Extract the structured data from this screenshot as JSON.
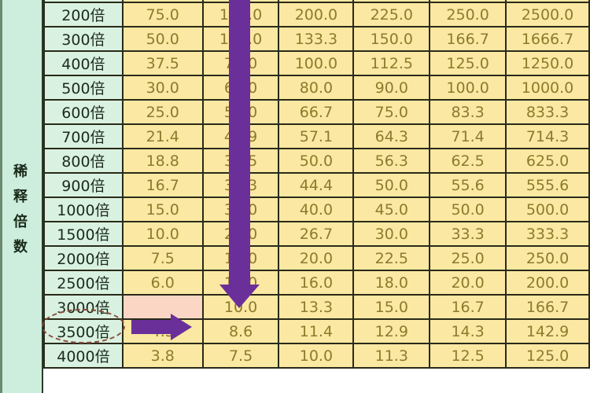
{
  "side_label": [
    "稀",
    "释",
    "倍",
    "数"
  ],
  "highlight_row": "3000倍",
  "colors": {
    "arrow": "#6b2f9a",
    "label_bg": "#d9f1e0",
    "value_bg": "#fbe8a2",
    "circle": "#8a4a3a"
  },
  "rows": [
    {
      "label": "",
      "values": [
        "",
        "",
        "",
        "",
        "",
        ""
      ]
    },
    {
      "label": "200倍",
      "values": [
        "75.0",
        "150.0",
        "200.0",
        "225.0",
        "250.0",
        "2500.0"
      ]
    },
    {
      "label": "300倍",
      "values": [
        "50.0",
        "100.0",
        "133.3",
        "150.0",
        "166.7",
        "1666.7"
      ]
    },
    {
      "label": "400倍",
      "values": [
        "37.5",
        "75.0",
        "100.0",
        "112.5",
        "125.0",
        "1250.0"
      ]
    },
    {
      "label": "500倍",
      "values": [
        "30.0",
        "60.0",
        "80.0",
        "90.0",
        "100.0",
        "1000.0"
      ]
    },
    {
      "label": "600倍",
      "values": [
        "25.0",
        "50.0",
        "66.7",
        "75.0",
        "83.3",
        "833.3"
      ]
    },
    {
      "label": "700倍",
      "values": [
        "21.4",
        "42.9",
        "57.1",
        "64.3",
        "71.4",
        "714.3"
      ]
    },
    {
      "label": "800倍",
      "values": [
        "18.8",
        "37.5",
        "50.0",
        "56.3",
        "62.5",
        "625.0"
      ]
    },
    {
      "label": "900倍",
      "values": [
        "16.7",
        "33.3",
        "44.4",
        "50.0",
        "55.6",
        "555.6"
      ]
    },
    {
      "label": "1000倍",
      "values": [
        "15.0",
        "30.0",
        "40.0",
        "45.0",
        "50.0",
        "500.0"
      ]
    },
    {
      "label": "1500倍",
      "values": [
        "10.0",
        "20.0",
        "26.7",
        "30.0",
        "33.3",
        "333.3"
      ]
    },
    {
      "label": "2000倍",
      "values": [
        "7.5",
        "15.0",
        "20.0",
        "22.5",
        "25.0",
        "250.0"
      ]
    },
    {
      "label": "2500倍",
      "values": [
        "6.0",
        "12.0",
        "16.0",
        "18.0",
        "20.0",
        "200.0"
      ]
    },
    {
      "label": "3000倍",
      "values": [
        "",
        "10.0",
        "13.3",
        "15.0",
        "16.7",
        "166.7"
      ]
    },
    {
      "label": "3500倍",
      "values": [
        "4.3",
        "8.6",
        "11.4",
        "12.9",
        "14.3",
        "142.9"
      ]
    },
    {
      "label": "4000倍",
      "values": [
        "3.8",
        "7.5",
        "10.0",
        "11.3",
        "12.5",
        "125.0"
      ]
    }
  ]
}
